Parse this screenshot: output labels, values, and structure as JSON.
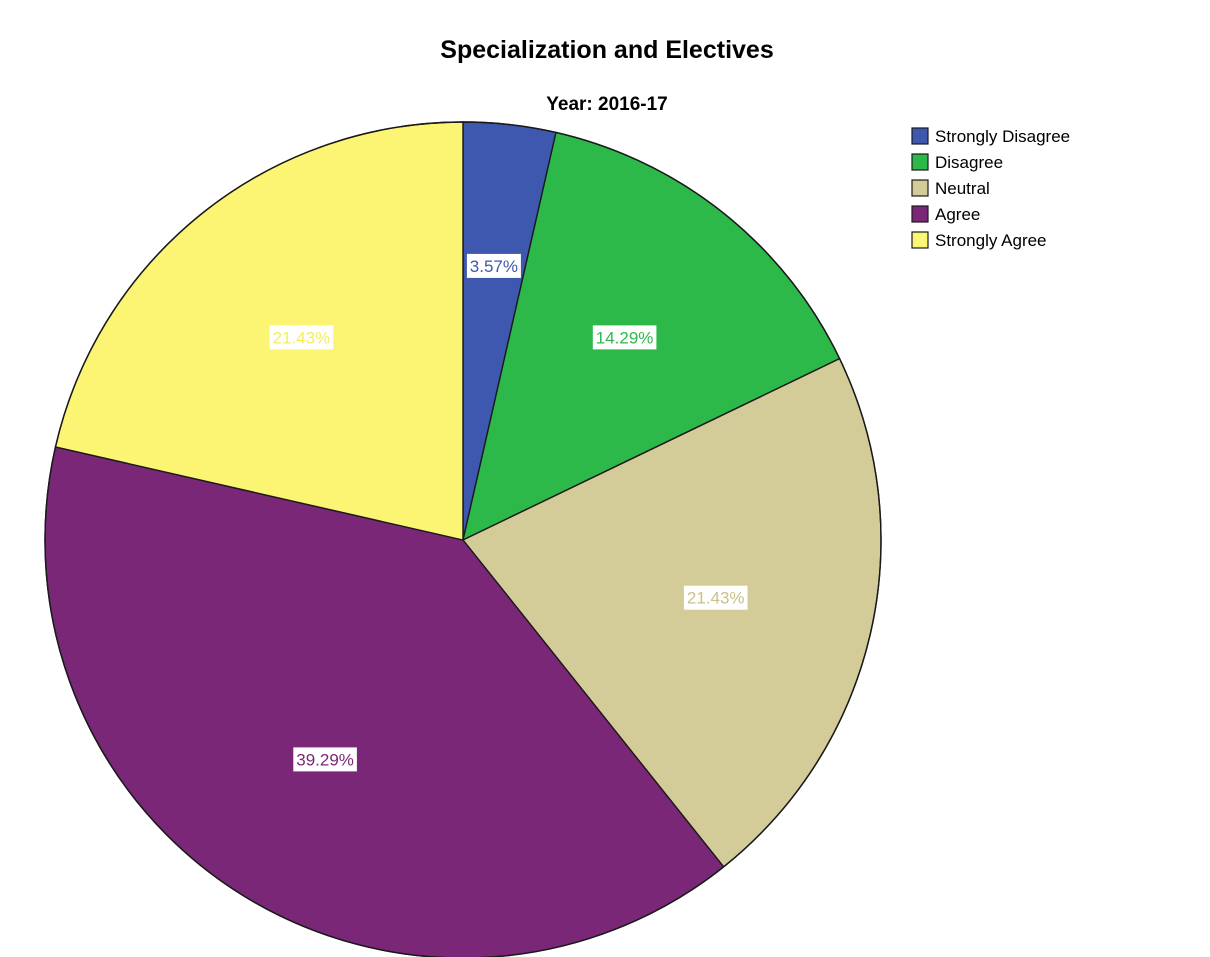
{
  "chart_data": {
    "type": "pie",
    "title": "Specialization and Electives",
    "subtitle": "Year: 2016-17",
    "legend_position": "top-right",
    "start_angle_deg": 0,
    "direction": "clockwise",
    "slices": [
      {
        "name": "Strongly Disagree",
        "value": 3.57,
        "label": "3.57%",
        "color": "#3e58b0"
      },
      {
        "name": "Disagree",
        "value": 14.29,
        "label": "14.29%",
        "color": "#2db84a"
      },
      {
        "name": "Neutral",
        "value": 21.43,
        "label": "21.43%",
        "color": "#d4cc98"
      },
      {
        "name": "Agree",
        "value": 39.29,
        "label": "39.29%",
        "color": "#7b2778"
      },
      {
        "name": "Strongly Agree",
        "value": 21.43,
        "label": "21.43%",
        "color": "#fbf573"
      }
    ]
  }
}
